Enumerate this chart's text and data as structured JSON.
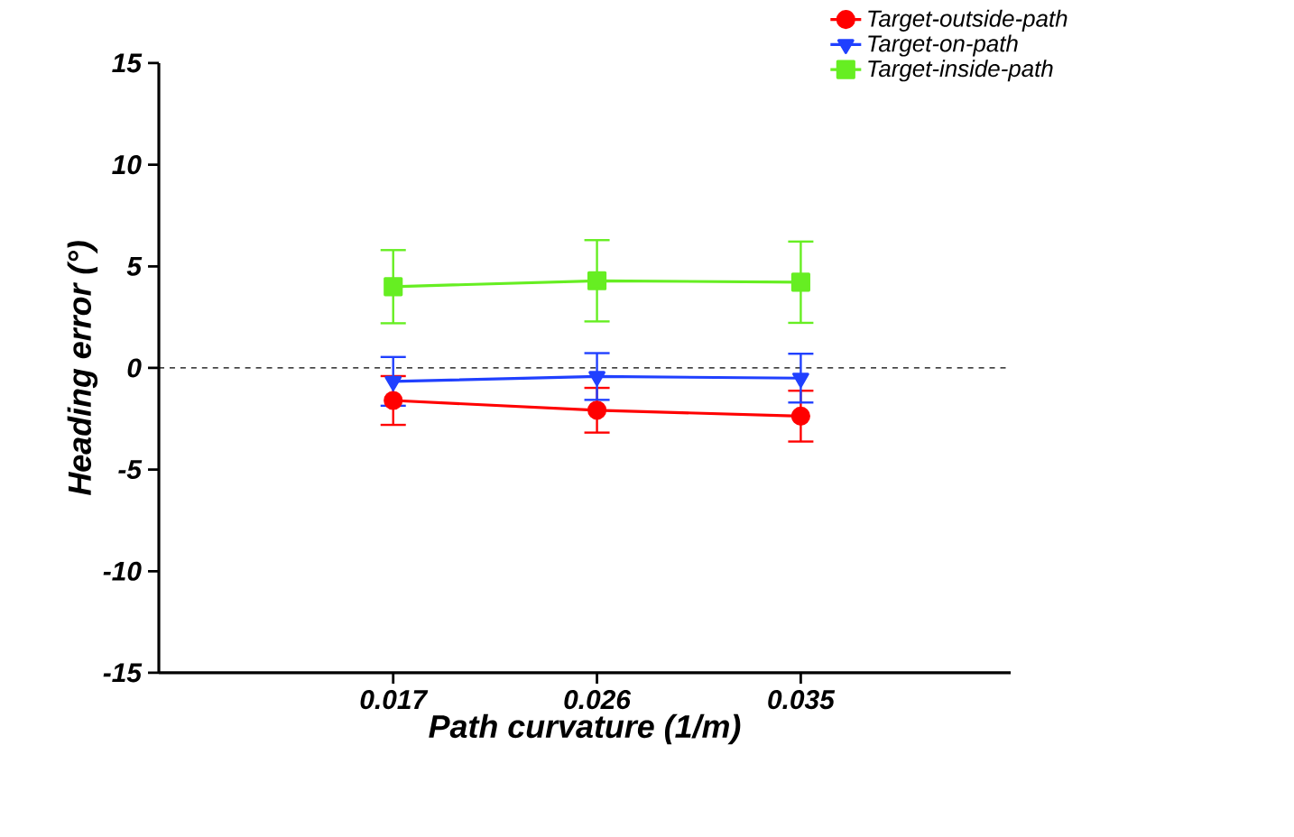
{
  "chart_data": {
    "type": "line",
    "xlabel": "Path curvature (1/m)",
    "ylabel": "Heading error (°)",
    "categories": [
      "0.017",
      "0.026",
      "0.035"
    ],
    "ylim": [
      -15,
      15
    ],
    "yticks": [
      -15,
      -10,
      -5,
      0,
      5,
      10,
      15
    ],
    "grid": false,
    "legend": "top right",
    "ref_lines": [
      {
        "axis": "y",
        "value": 0,
        "color": "#000000",
        "line_style": "dashed"
      }
    ],
    "series": [
      {
        "name": "Target-outside-path",
        "color": "#ff0000",
        "marker": "circle",
        "values": [
          -1.6,
          -2.08,
          -2.37
        ],
        "errors": [
          1.2,
          1.1,
          1.25
        ]
      },
      {
        "name": "Target-on-path",
        "color": "#2040ff",
        "marker": "triangle",
        "values": [
          -0.66,
          -0.42,
          -0.5
        ],
        "errors": [
          1.2,
          1.15,
          1.2
        ]
      },
      {
        "name": "Target-inside-path",
        "color": "#66ee22",
        "marker": "square",
        "values": [
          4.0,
          4.29,
          4.22
        ],
        "errors": [
          1.8,
          2.0,
          2.0
        ]
      }
    ]
  }
}
